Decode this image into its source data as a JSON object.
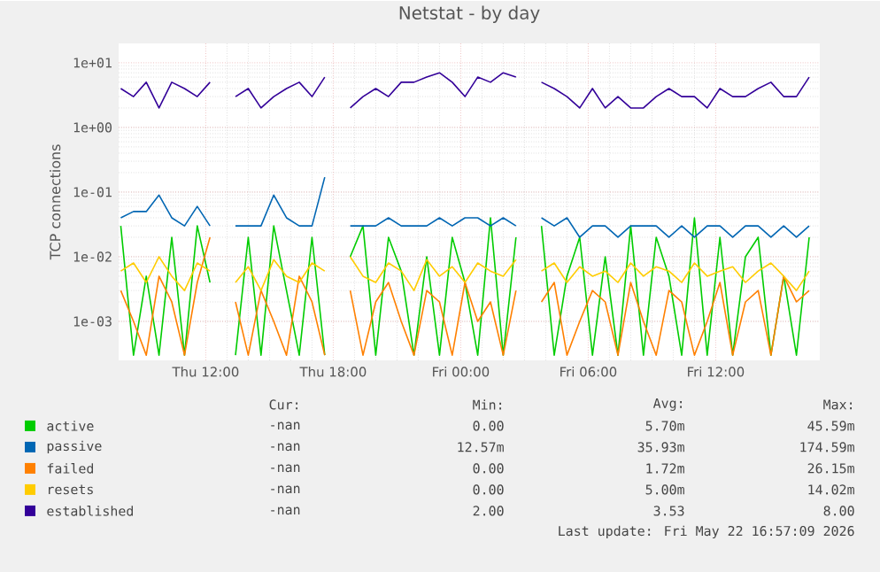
{
  "chart_data": {
    "type": "line",
    "title": "Netstat - by day",
    "ylabel": "TCP connections",
    "log": "y",
    "grid": true,
    "legend": "bottom",
    "marker": "none",
    "line_style": "solid",
    "xlim": [
      "2026-05-21T07:54",
      "2026-05-22T16:54"
    ],
    "xticks": [
      {
        "value": "2026-05-21T12:00",
        "label": "Thu 12:00"
      },
      {
        "value": "2026-05-21T18:00",
        "label": "Thu 18:00"
      },
      {
        "value": "2026-05-22T00:00",
        "label": "Fri 00:00"
      },
      {
        "value": "2026-05-22T06:00",
        "label": "Fri 06:00"
      },
      {
        "value": "2026-05-22T12:00",
        "label": "Fri 12:00"
      }
    ],
    "ylim": [
      0.00025,
      20
    ],
    "yticks": [
      {
        "value": 0.001,
        "label": "1e-03"
      },
      {
        "value": 0.01,
        "label": "1e-02"
      },
      {
        "value": 0.1,
        "label": "1e-01"
      },
      {
        "value": 1,
        "label": "1e+00"
      },
      {
        "value": 10,
        "label": "1e+01"
      }
    ],
    "x": [
      "2026-05-21T08:00",
      "2026-05-21T08:36",
      "2026-05-21T09:12",
      "2026-05-21T09:48",
      "2026-05-21T10:24",
      "2026-05-21T11:00",
      "2026-05-21T11:36",
      "2026-05-21T12:12",
      "2026-05-21T12:48",
      "2026-05-21T13:24",
      "2026-05-21T14:00",
      "2026-05-21T14:36",
      "2026-05-21T15:12",
      "2026-05-21T15:48",
      "2026-05-21T16:24",
      "2026-05-21T17:00",
      "2026-05-21T17:36",
      "2026-05-21T18:12",
      "2026-05-21T18:48",
      "2026-05-21T19:24",
      "2026-05-21T20:00",
      "2026-05-21T20:36",
      "2026-05-21T21:12",
      "2026-05-21T21:48",
      "2026-05-21T22:24",
      "2026-05-21T23:00",
      "2026-05-21T23:36",
      "2026-05-22T00:12",
      "2026-05-22T00:48",
      "2026-05-22T01:24",
      "2026-05-22T02:00",
      "2026-05-22T02:36",
      "2026-05-22T03:12",
      "2026-05-22T03:48",
      "2026-05-22T04:24",
      "2026-05-22T05:00",
      "2026-05-22T05:36",
      "2026-05-22T06:12",
      "2026-05-22T06:48",
      "2026-05-22T07:24",
      "2026-05-22T08:00",
      "2026-05-22T08:36",
      "2026-05-22T09:12",
      "2026-05-22T09:48",
      "2026-05-22T10:24",
      "2026-05-22T11:00",
      "2026-05-22T11:36",
      "2026-05-22T12:12",
      "2026-05-22T12:48",
      "2026-05-22T13:24",
      "2026-05-22T14:00",
      "2026-05-22T14:36",
      "2026-05-22T15:12",
      "2026-05-22T15:48",
      "2026-05-22T16:24"
    ],
    "series": [
      {
        "name": "active",
        "color": "#00cc00",
        "values": [
          0.03,
          0.0003,
          0.005,
          0.0003,
          0.02,
          0.0003,
          0.03,
          0.004,
          null,
          0.0003,
          0.02,
          0.0003,
          0.03,
          0.003,
          0.0003,
          0.02,
          0.0003,
          null,
          0.01,
          0.03,
          0.0003,
          0.02,
          0.006,
          0.0003,
          0.01,
          0.0003,
          0.02,
          0.004,
          0.0003,
          0.04,
          0.0003,
          0.02,
          null,
          0.03,
          0.0003,
          0.005,
          0.02,
          0.0003,
          0.01,
          0.0003,
          0.03,
          0.0003,
          0.02,
          0.005,
          0.0003,
          0.04,
          0.0003,
          0.02,
          0.0003,
          0.01,
          0.02,
          0.0003,
          0.005,
          0.0003,
          0.02
        ]
      },
      {
        "name": "passive",
        "color": "#0066b3",
        "values": [
          0.04,
          0.05,
          0.05,
          0.09,
          0.04,
          0.03,
          0.06,
          0.03,
          null,
          0.03,
          0.03,
          0.03,
          0.09,
          0.04,
          0.03,
          0.03,
          0.17,
          null,
          0.03,
          0.03,
          0.03,
          0.04,
          0.03,
          0.03,
          0.03,
          0.04,
          0.03,
          0.04,
          0.04,
          0.03,
          0.04,
          0.03,
          null,
          0.04,
          0.03,
          0.04,
          0.02,
          0.03,
          0.03,
          0.02,
          0.03,
          0.03,
          0.03,
          0.02,
          0.03,
          0.02,
          0.03,
          0.03,
          0.02,
          0.03,
          0.03,
          0.02,
          0.03,
          0.02,
          0.03
        ]
      },
      {
        "name": "failed",
        "color": "#ff8000",
        "values": [
          0.003,
          0.001,
          0.0003,
          0.005,
          0.002,
          0.0003,
          0.004,
          0.02,
          null,
          0.002,
          0.0003,
          0.003,
          0.001,
          0.0003,
          0.005,
          0.002,
          0.0003,
          null,
          0.003,
          0.0003,
          0.002,
          0.004,
          0.001,
          0.0003,
          0.003,
          0.002,
          0.0003,
          0.004,
          0.001,
          0.002,
          0.0003,
          0.003,
          null,
          0.002,
          0.004,
          0.0003,
          0.001,
          0.003,
          0.002,
          0.0003,
          0.004,
          0.001,
          0.0003,
          0.003,
          0.002,
          0.0003,
          0.001,
          0.004,
          0.0003,
          0.002,
          0.003,
          0.0003,
          0.005,
          0.002,
          0.003
        ]
      },
      {
        "name": "resets",
        "color": "#ffcc00",
        "values": [
          0.006,
          0.008,
          0.004,
          0.01,
          0.005,
          0.003,
          0.008,
          0.006,
          null,
          0.004,
          0.007,
          0.003,
          0.009,
          0.005,
          0.004,
          0.008,
          0.006,
          null,
          0.01,
          0.005,
          0.004,
          0.008,
          0.006,
          0.003,
          0.009,
          0.005,
          0.007,
          0.004,
          0.008,
          0.006,
          0.005,
          0.009,
          null,
          0.006,
          0.008,
          0.004,
          0.007,
          0.005,
          0.006,
          0.004,
          0.008,
          0.005,
          0.007,
          0.006,
          0.004,
          0.008,
          0.005,
          0.006,
          0.007,
          0.004,
          0.006,
          0.008,
          0.005,
          0.003,
          0.006
        ]
      },
      {
        "name": "established",
        "color": "#330099",
        "values": [
          4,
          3,
          5,
          2,
          5,
          4,
          3,
          5,
          null,
          3,
          4,
          2,
          3,
          4,
          5,
          3,
          6,
          null,
          2,
          3,
          4,
          3,
          5,
          5,
          6,
          7,
          5,
          3,
          6,
          5,
          7,
          6,
          null,
          5,
          4,
          3,
          2,
          4,
          2,
          3,
          2,
          2,
          3,
          4,
          3,
          3,
          2,
          4,
          3,
          3,
          4,
          5,
          3,
          3,
          6
        ]
      }
    ],
    "annotations": [
      "Cur:",
      "Min:",
      "Avg:",
      "Max:",
      "-nan",
      "0.00",
      "5.70m",
      "45.59m",
      "-nan",
      "12.57m",
      "35.93m",
      "174.59m",
      "-nan",
      "0.00",
      "1.72m",
      "26.15m",
      "-nan",
      "0.00",
      "5.00m",
      "14.02m",
      "-nan",
      "2.00",
      "3.53",
      "8.00",
      "Last update: Fri May 22 16:57:09 2026"
    ]
  }
}
